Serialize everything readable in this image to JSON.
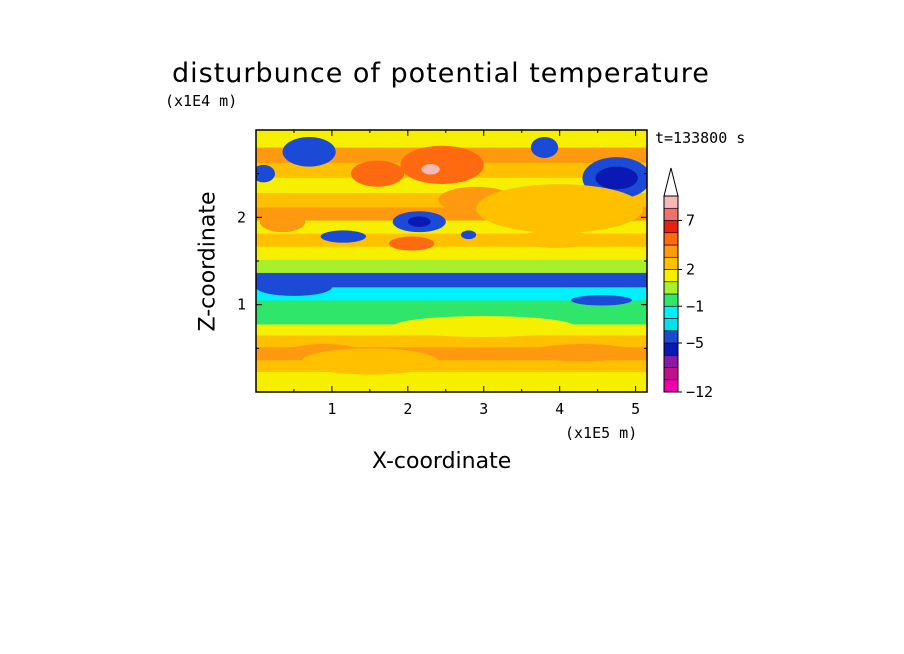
{
  "chart_data": {
    "type": "heatmap",
    "title": "disturbunce of potential temperature",
    "time_label": "t=133800 s",
    "xlabel": "X-coordinate",
    "ylabel": "Z-coordinate",
    "x_unit": "(x1E5 m)",
    "y_unit": "(x1E4 m)",
    "x_ticks": [
      "1",
      "2",
      "3",
      "4",
      "5"
    ],
    "y_ticks": [
      "1",
      "2"
    ],
    "xlim": [
      0,
      5.15
    ],
    "ylim": [
      0,
      3.0
    ],
    "colorbar": {
      "levels": [
        -12,
        -10,
        -8,
        -7,
        -5,
        -3,
        -2,
        -1,
        0,
        1,
        2,
        3,
        4,
        5,
        7,
        9,
        10
      ],
      "tick_labels": [
        "7",
        "2",
        "−1",
        "−5",
        "−12"
      ],
      "colors": [
        "#ee00aa",
        "#c0108c",
        "#8a1aa6",
        "#0a19b4",
        "#1a4ad6",
        "#00e2ec",
        "#00f0ff",
        "#2fe66a",
        "#a8f02c",
        "#f6f000",
        "#ffc000",
        "#ff9a10",
        "#ff6a10",
        "#e82010",
        "#f07070",
        "#f8b8b8"
      ],
      "extend": "max"
    },
    "bands": [
      {
        "z": 0.06,
        "level": 1
      },
      {
        "z": 0.18,
        "level": 1
      },
      {
        "z": 0.3,
        "level": 2
      },
      {
        "z": 0.45,
        "level": 3
      },
      {
        "z": 0.6,
        "level": 2
      },
      {
        "z": 0.72,
        "level": 1
      },
      {
        "z": 0.85,
        "level": -1
      },
      {
        "z": 1.0,
        "level": -1
      },
      {
        "z": 1.12,
        "level": -2
      },
      {
        "z": 1.3,
        "level": -5
      },
      {
        "z": 1.45,
        "level": 0
      },
      {
        "z": 1.6,
        "level": 1
      },
      {
        "z": 1.75,
        "level": 2
      },
      {
        "z": 1.9,
        "level": 1
      },
      {
        "z": 2.05,
        "level": 3
      },
      {
        "z": 2.2,
        "level": 2
      },
      {
        "z": 2.38,
        "level": 1
      },
      {
        "z": 2.55,
        "level": 2
      },
      {
        "z": 2.72,
        "level": 3
      },
      {
        "z": 2.9,
        "level": 1
      }
    ],
    "features": [
      {
        "x": 0.7,
        "z": 2.75,
        "rx": 0.35,
        "rz": 0.17,
        "level": -5
      },
      {
        "x": 0.1,
        "z": 2.5,
        "rx": 0.15,
        "rz": 0.1,
        "level": -5
      },
      {
        "x": 4.75,
        "z": 2.45,
        "rx": 0.45,
        "rz": 0.24,
        "level": -5
      },
      {
        "x": 4.75,
        "z": 2.45,
        "rx": 0.28,
        "rz": 0.13,
        "level": -7
      },
      {
        "x": 3.8,
        "z": 2.8,
        "rx": 0.18,
        "rz": 0.12,
        "level": -5
      },
      {
        "x": 2.15,
        "z": 1.95,
        "rx": 0.35,
        "rz": 0.12,
        "level": -5
      },
      {
        "x": 2.15,
        "z": 1.95,
        "rx": 0.15,
        "rz": 0.06,
        "level": -7
      },
      {
        "x": 1.15,
        "z": 1.78,
        "rx": 0.3,
        "rz": 0.07,
        "level": -5
      },
      {
        "x": 2.8,
        "z": 1.8,
        "rx": 0.1,
        "rz": 0.05,
        "level": -5
      },
      {
        "x": 2.45,
        "z": 2.6,
        "rx": 0.55,
        "rz": 0.22,
        "level": 4
      },
      {
        "x": 2.3,
        "z": 2.55,
        "rx": 0.12,
        "rz": 0.06,
        "level": 9
      },
      {
        "x": 1.6,
        "z": 2.5,
        "rx": 0.35,
        "rz": 0.15,
        "level": 4
      },
      {
        "x": 2.05,
        "z": 1.7,
        "rx": 0.3,
        "rz": 0.08,
        "level": 4
      },
      {
        "x": 0.35,
        "z": 1.95,
        "rx": 0.3,
        "rz": 0.12,
        "level": 3
      },
      {
        "x": 2.9,
        "z": 2.2,
        "rx": 0.5,
        "rz": 0.15,
        "level": 3
      },
      {
        "x": 3.95,
        "z": 1.75,
        "rx": 0.5,
        "rz": 0.1,
        "level": 2
      },
      {
        "x": 4.8,
        "z": 2.05,
        "rx": 0.45,
        "rz": 0.1,
        "level": 3
      },
      {
        "x": 0.5,
        "z": 1.2,
        "rx": 0.5,
        "rz": 0.1,
        "level": -5
      },
      {
        "x": 4.55,
        "z": 1.05,
        "rx": 0.4,
        "rz": 0.06,
        "level": -5
      },
      {
        "x": 3.0,
        "z": 0.75,
        "rx": 1.2,
        "rz": 0.12,
        "level": 1
      },
      {
        "x": 4.3,
        "z": 0.45,
        "rx": 0.7,
        "rz": 0.1,
        "level": 3
      },
      {
        "x": 0.9,
        "z": 0.45,
        "rx": 0.5,
        "rz": 0.1,
        "level": 3
      },
      {
        "x": 1.5,
        "z": 0.35,
        "rx": 0.9,
        "rz": 0.15,
        "level": 2
      },
      {
        "x": 4.0,
        "z": 2.1,
        "rx": 1.1,
        "rz": 0.28,
        "level": 2
      }
    ]
  }
}
